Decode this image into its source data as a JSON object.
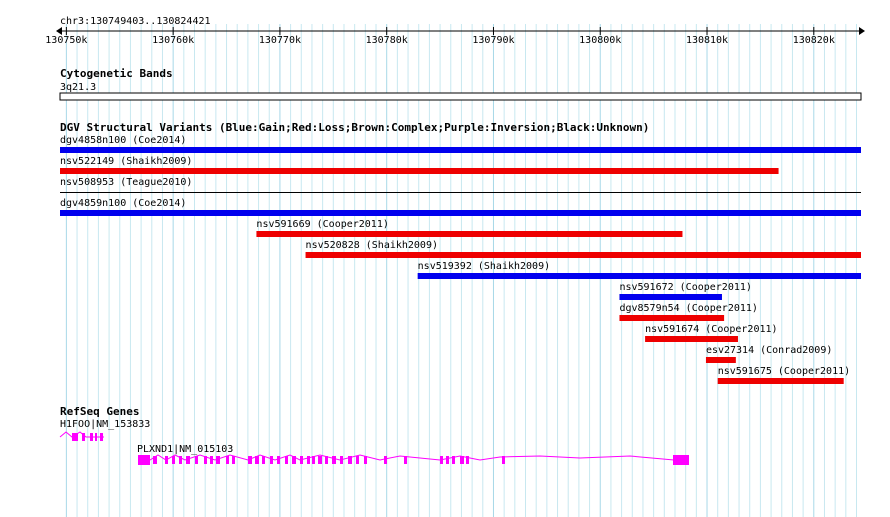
{
  "ruler": {
    "coord": "chr3:130749403..130824421",
    "start": 130749403,
    "end": 130824421,
    "ticks": [
      {
        "pos": 130750000,
        "label": "130750k"
      },
      {
        "pos": 130760000,
        "label": "130760k"
      },
      {
        "pos": 130770000,
        "label": "130770k"
      },
      {
        "pos": 130780000,
        "label": "130780k"
      },
      {
        "pos": 130790000,
        "label": "130790k"
      },
      {
        "pos": 130800000,
        "label": "130800k"
      },
      {
        "pos": 130810000,
        "label": "130810k"
      },
      {
        "pos": 130820000,
        "label": "130820k"
      }
    ]
  },
  "cytoband": {
    "title": "Cytogenetic Bands",
    "band": "3q21.3"
  },
  "dgv": {
    "title": "DGV Structural Variants (Blue:Gain;Red:Loss;Brown:Complex;Purple:Inversion;Black:Unknown)",
    "colors": {
      "gain": "#0000ee",
      "loss": "#ee0000",
      "unknown": "#000000"
    },
    "features": [
      {
        "name": "dgv4858n100 (Coe2014)",
        "type": "gain",
        "start": 130749403,
        "end": 130824421
      },
      {
        "name": "nsv522149 (Shaikh2009)",
        "type": "loss",
        "start": 130749403,
        "end": 130816700
      },
      {
        "name": "nsv508953 (Teague2010)",
        "type": "unknown",
        "start": 130749403,
        "end": 130824421
      },
      {
        "name": "dgv4859n100 (Coe2014)",
        "type": "gain",
        "start": 130749403,
        "end": 130824421
      },
      {
        "name": "nsv591669 (Cooper2011)",
        "type": "loss",
        "start": 130767800,
        "end": 130807700
      },
      {
        "name": "nsv520828 (Shaikh2009)",
        "type": "loss",
        "start": 130772400,
        "end": 130824421
      },
      {
        "name": "nsv519392 (Shaikh2009)",
        "type": "gain",
        "start": 130782900,
        "end": 130824421
      },
      {
        "name": "nsv591672 (Cooper2011)",
        "type": "gain",
        "start": 130801800,
        "end": 130811400
      },
      {
        "name": "dgv8579n54 (Cooper2011)",
        "type": "loss",
        "start": 130801800,
        "end": 130811600
      },
      {
        "name": "nsv591674 (Cooper2011)",
        "type": "loss",
        "start": 130804200,
        "end": 130812900
      },
      {
        "name": "esv27314 (Conrad2009)",
        "type": "loss",
        "start": 130809900,
        "end": 130812700
      },
      {
        "name": "nsv591675 (Cooper2011)",
        "type": "loss",
        "start": 130811000,
        "end": 130822800
      }
    ]
  },
  "refseq": {
    "title": "RefSeq Genes",
    "color": "#ff00ff",
    "genes": [
      {
        "name": "H1FOO|NM_153833"
      },
      {
        "name": "PLXND1|NM_015103"
      }
    ]
  }
}
